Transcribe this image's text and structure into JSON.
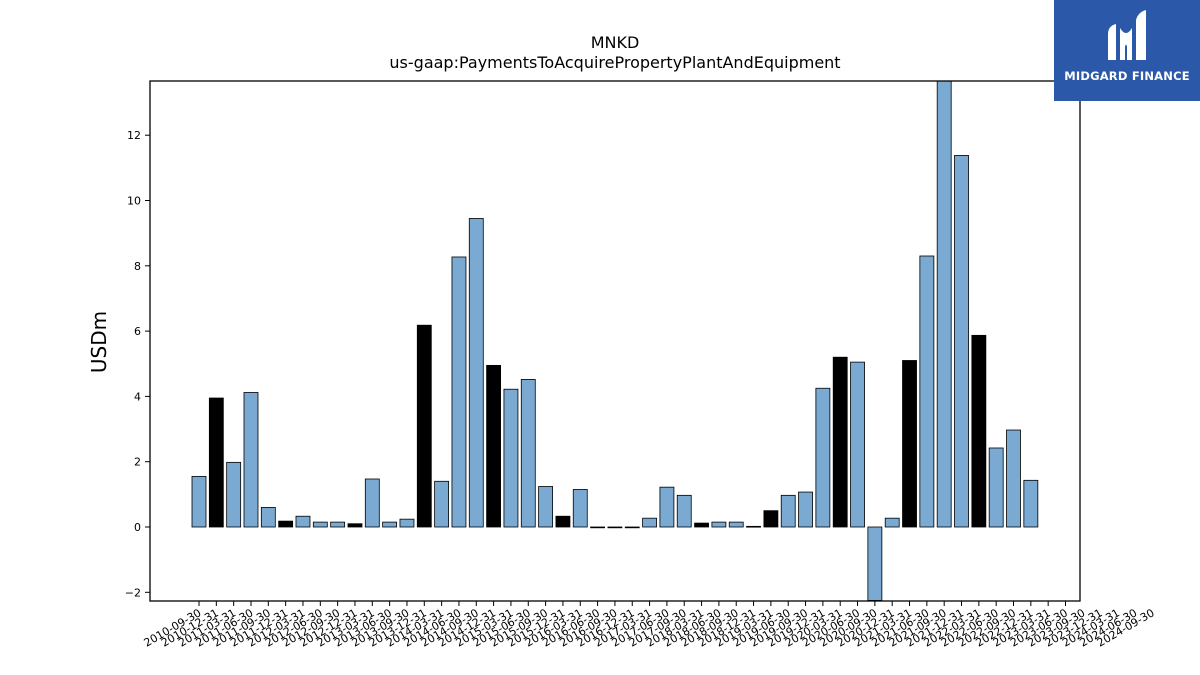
{
  "chart_data": {
    "type": "bar",
    "title": "MNKD",
    "subtitle": "us-gaap:PaymentsToAcquirePropertyPlantAndEquipment",
    "ylabel": "USDm",
    "xlabel": "",
    "ylim": [
      -2.25,
      13.7
    ],
    "yticks": [
      -2,
      0,
      2,
      4,
      6,
      8,
      10,
      12
    ],
    "ytick_labels": [
      "−2",
      "0",
      "2",
      "4",
      "6",
      "8",
      "10",
      "12"
    ],
    "grid": false,
    "colors": {
      "quarter": "#7aaad2",
      "annual": "#000000",
      "edge": "#000000"
    },
    "bars": [
      {
        "x": "2010-09-30",
        "value": 1.55,
        "annual": false
      },
      {
        "x": "2010-12-31",
        "value": 3.95,
        "annual": true
      },
      {
        "x": "2011-03-31",
        "value": 1.98,
        "annual": false
      },
      {
        "x": "2011-06-30",
        "value": 4.12,
        "annual": false
      },
      {
        "x": "2011-09-30",
        "value": 0.6,
        "annual": false
      },
      {
        "x": "2011-12-31",
        "value": 0.18,
        "annual": true
      },
      {
        "x": "2012-03-31",
        "value": 0.33,
        "annual": false
      },
      {
        "x": "2012-06-30",
        "value": 0.15,
        "annual": false
      },
      {
        "x": "2012-09-30",
        "value": 0.15,
        "annual": false
      },
      {
        "x": "2012-12-31",
        "value": 0.1,
        "annual": true
      },
      {
        "x": "2013-03-31",
        "value": 1.47,
        "annual": false
      },
      {
        "x": "2013-06-30",
        "value": 0.15,
        "annual": false
      },
      {
        "x": "2013-09-30",
        "value": 0.24,
        "annual": false
      },
      {
        "x": "2013-12-31",
        "value": 6.18,
        "annual": true
      },
      {
        "x": "2014-03-31",
        "value": 1.4,
        "annual": false
      },
      {
        "x": "2014-06-30",
        "value": 8.27,
        "annual": false
      },
      {
        "x": "2014-09-30",
        "value": 9.45,
        "annual": false
      },
      {
        "x": "2014-12-31",
        "value": 4.95,
        "annual": true
      },
      {
        "x": "2015-03-31",
        "value": 4.22,
        "annual": false
      },
      {
        "x": "2015-06-30",
        "value": 4.52,
        "annual": false
      },
      {
        "x": "2015-09-30",
        "value": 1.24,
        "annual": false
      },
      {
        "x": "2015-12-31",
        "value": 0.33,
        "annual": true
      },
      {
        "x": "2016-03-31",
        "value": 1.15,
        "annual": false
      },
      {
        "x": "2016-06-30",
        "value": 0.0,
        "annual": false
      },
      {
        "x": "2016-09-30",
        "value": 0.0,
        "annual": false
      },
      {
        "x": "2016-12-31",
        "value": 0.0,
        "annual": true
      },
      {
        "x": "2018-03-31",
        "value": 0.27,
        "annual": false
      },
      {
        "x": "2018-06-30",
        "value": 1.22,
        "annual": false
      },
      {
        "x": "2018-09-30",
        "value": 0.97,
        "annual": false
      },
      {
        "x": "2018-12-31",
        "value": 0.12,
        "annual": true
      },
      {
        "x": "2019-03-31",
        "value": 0.15,
        "annual": false
      },
      {
        "x": "2019-06-30",
        "value": 0.15,
        "annual": false
      },
      {
        "x": "2019-09-30",
        "value": 0.02,
        "annual": false
      },
      {
        "x": "2019-12-31",
        "value": 0.5,
        "annual": true
      },
      {
        "x": "2020-03-31",
        "value": 0.97,
        "annual": false
      },
      {
        "x": "2020-06-30",
        "value": 1.07,
        "annual": false
      },
      {
        "x": "2020-09-30",
        "value": 4.25,
        "annual": false
      },
      {
        "x": "2020-12-31",
        "value": 5.2,
        "annual": true
      },
      {
        "x": "2021-03-31",
        "value": 5.05,
        "annual": false
      },
      {
        "x": "2021-06-30",
        "value": -2.25,
        "annual": false
      },
      {
        "x": "2021-09-30",
        "value": 0.27,
        "annual": false
      },
      {
        "x": "2021-12-31",
        "value": 5.1,
        "annual": true
      },
      {
        "x": "2022-03-31",
        "value": 8.3,
        "annual": false
      },
      {
        "x": "2022-06-30",
        "value": 13.7,
        "annual": false
      },
      {
        "x": "2022-09-30",
        "value": 11.38,
        "annual": false
      },
      {
        "x": "2022-12-31",
        "value": 5.87,
        "annual": true
      },
      {
        "x": "2023-03-31",
        "value": 2.42,
        "annual": false
      },
      {
        "x": "2023-06-30",
        "value": 2.97,
        "annual": false
      },
      {
        "x": "2023-09-30",
        "value": 1.43,
        "annual": false
      }
    ],
    "xtick_labels": [
      "2010-09-30",
      "2010-12-31",
      "2011-03-31",
      "2011-06-30",
      "2011-09-30",
      "2011-12-31",
      "2012-03-31",
      "2012-06-30",
      "2012-09-30",
      "2012-12-31",
      "2013-03-31",
      "2013-06-30",
      "2013-09-30",
      "2013-12-31",
      "2014-03-31",
      "2014-06-30",
      "2014-09-30",
      "2014-12-31",
      "2015-03-31",
      "2015-06-30",
      "2015-09-30",
      "2015-12-31",
      "2016-03-31",
      "2016-06-30",
      "2016-09-30",
      "2016-12-31",
      "2017-03-31",
      "2017-06-30",
      "2017-09-30",
      "2018-03-31",
      "2018-06-30",
      "2018-09-30",
      "2018-12-31",
      "2019-03-31",
      "2019-06-30",
      "2019-09-30",
      "2019-12-31",
      "2020-03-31",
      "2020-06-30",
      "2020-09-30",
      "2020-12-31",
      "2021-03-31",
      "2021-06-30",
      "2021-09-30",
      "2021-12-31",
      "2022-03-31",
      "2022-06-30",
      "2022-09-30",
      "2022-12-31",
      "2023-03-31",
      "2023-06-30",
      "2023-09-30",
      "2023-12-31",
      "2024-03-31",
      "2024-06-30",
      "2024-09-30"
    ]
  },
  "logo": {
    "text": "MIDGARD FINANCE",
    "icon": "midgard-m-logo-icon",
    "background": "#2b58a9"
  }
}
